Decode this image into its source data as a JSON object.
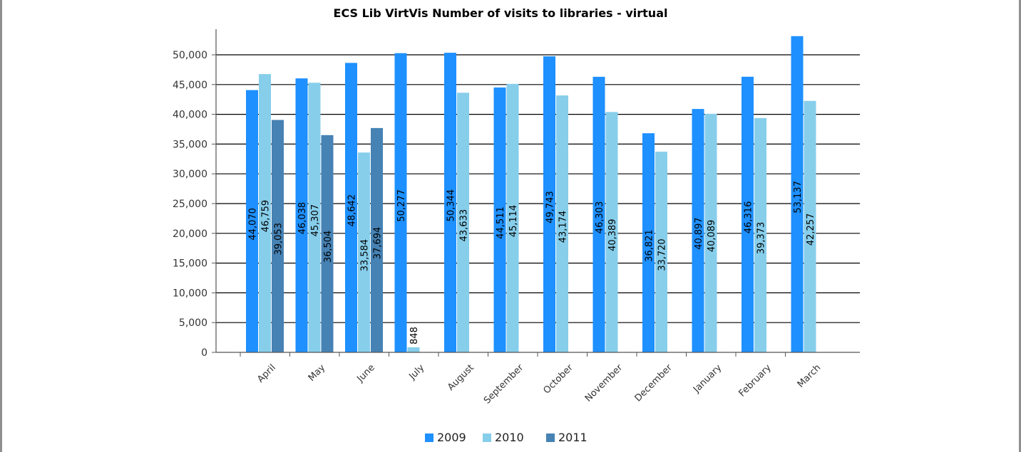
{
  "chart_data": {
    "type": "bar",
    "title": "ECS Lib VirtVis Number of visits to libraries - virtual",
    "xlabel": "",
    "ylabel": "",
    "categories": [
      "April",
      "May",
      "June",
      "July",
      "August",
      "September",
      "October",
      "November",
      "December",
      "January",
      "February",
      "March"
    ],
    "series": [
      {
        "name": "2009",
        "color": "#1e90ff",
        "values": [
          44070,
          46038,
          48642,
          50277,
          50344,
          44511,
          49743,
          46303,
          36821,
          40897,
          46316,
          53137
        ],
        "labels": [
          "44,070",
          "46,038",
          "48,642",
          "50,277",
          "50,344",
          "44,511",
          "49,743",
          "46,303",
          "36,821",
          "40,897",
          "46,316",
          "53,137"
        ]
      },
      {
        "name": "2010",
        "color": "#87ceeb",
        "values": [
          46759,
          45307,
          33584,
          848,
          43633,
          45114,
          43174,
          40389,
          33720,
          40089,
          39373,
          42257
        ],
        "labels": [
          "46,759",
          "45,307",
          "33,584",
          "848",
          "43,633",
          "45,114",
          "43,174",
          "40,389",
          "33,720",
          "40,089",
          "39,373",
          "42,257"
        ]
      },
      {
        "name": "2011",
        "color": "#4682b4",
        "values": [
          39053,
          36504,
          37694,
          null,
          null,
          null,
          null,
          null,
          null,
          null,
          null,
          null
        ],
        "labels": [
          "39,053",
          "36,504",
          "37,694",
          "",
          "",
          "",
          "",
          "",
          "",
          "",
          "",
          ""
        ]
      }
    ],
    "ylim": [
      0,
      55000
    ],
    "yticks": [
      0,
      5000,
      10000,
      15000,
      20000,
      25000,
      30000,
      35000,
      40000,
      45000,
      50000
    ],
    "ytick_labels": [
      "0",
      "5,000",
      "10,000",
      "15,000",
      "20,000",
      "25,000",
      "30,000",
      "35,000",
      "40,000",
      "45,000",
      "50,000"
    ],
    "grid": true,
    "legend": "bottom-center"
  }
}
